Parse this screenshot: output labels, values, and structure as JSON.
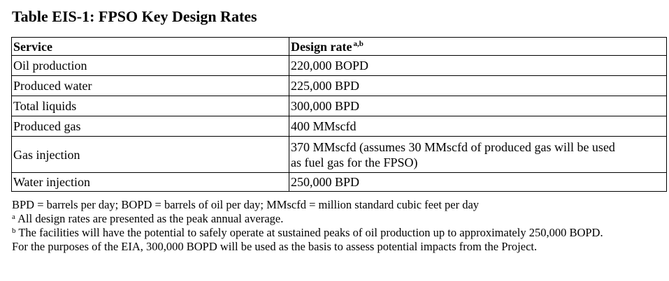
{
  "title": "Table EIS-1: FPSO Key Design Rates",
  "table": {
    "headers": {
      "service": "Service",
      "design_rate": "Design rate",
      "design_rate_sup": "a,b"
    },
    "rows": [
      {
        "service": "Oil production",
        "rate": "220,000 BOPD"
      },
      {
        "service": "Produced water",
        "rate": "225,000 BPD"
      },
      {
        "service": "Total liquids",
        "rate": "300,000 BPD"
      },
      {
        "service": "Produced gas",
        "rate": "400 MMscfd"
      },
      {
        "service": "Gas injection",
        "rate_line1": "370 MMscfd (assumes 30 MMscfd of produced gas will be used",
        "rate_line2": "as fuel gas for the FPSO)"
      },
      {
        "service": "Water injection",
        "rate": "250,000 BPD"
      }
    ]
  },
  "notes": {
    "abbreviations": "BPD = barrels per day; BOPD = barrels of oil per day; MMscfd = million standard cubic feet per day",
    "note_a_marker": "a",
    "note_a": " All design rates are presented as the peak annual average.",
    "note_b_marker": "b",
    "note_b_line1": " The facilities will have the potential to safely operate at sustained peaks of oil production up to approximately 250,000 BOPD.",
    "note_b_line2": "For the purposes of the EIA, 300,000 BOPD will be used as the basis to assess potential impacts from the Project."
  }
}
